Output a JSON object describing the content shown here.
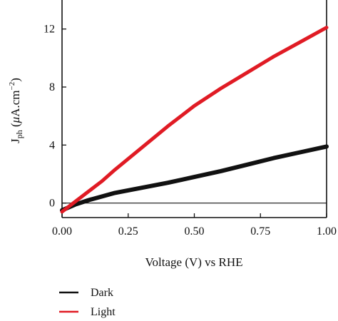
{
  "chart_data": {
    "type": "line",
    "title": "",
    "xlabel": "Voltage (V) vs RHE",
    "ylabel": {
      "prefix": "J",
      "subscript": "ph",
      "unit_open": " (",
      "unit_mu": "μ",
      "unit_mid": "A.cm",
      "unit_sup": "−2",
      "unit_close": ")"
    },
    "xlim": [
      0.0,
      1.0
    ],
    "ylim": [
      -1.0,
      14.0
    ],
    "x_ticks": [
      0.0,
      0.25,
      0.5,
      0.75,
      1.0
    ],
    "x_tick_labels": [
      "0.00",
      "0.25",
      "0.50",
      "0.75",
      "1.00"
    ],
    "y_ticks": [
      0,
      4,
      8,
      12
    ],
    "y_tick_labels": [
      "0",
      "4",
      "8",
      "12"
    ],
    "zero_line": true,
    "grid": false,
    "legend_position": "bottom-left, outside plot",
    "series": [
      {
        "name": "Dark",
        "color": "#111111",
        "x": [
          0.0,
          0.05,
          0.1,
          0.15,
          0.2,
          0.3,
          0.4,
          0.5,
          0.6,
          0.7,
          0.8,
          0.9,
          1.0
        ],
        "y": [
          -0.5,
          -0.1,
          0.2,
          0.45,
          0.7,
          1.05,
          1.4,
          1.8,
          2.2,
          2.65,
          3.1,
          3.5,
          3.9
        ]
      },
      {
        "name": "Light",
        "color": "#e01b24",
        "x": [
          0.0,
          0.05,
          0.1,
          0.15,
          0.2,
          0.3,
          0.4,
          0.5,
          0.6,
          0.7,
          0.8,
          0.9,
          1.0
        ],
        "y": [
          -0.6,
          0.1,
          0.8,
          1.5,
          2.3,
          3.8,
          5.3,
          6.7,
          7.9,
          9.0,
          10.1,
          11.1,
          12.1
        ]
      }
    ]
  }
}
